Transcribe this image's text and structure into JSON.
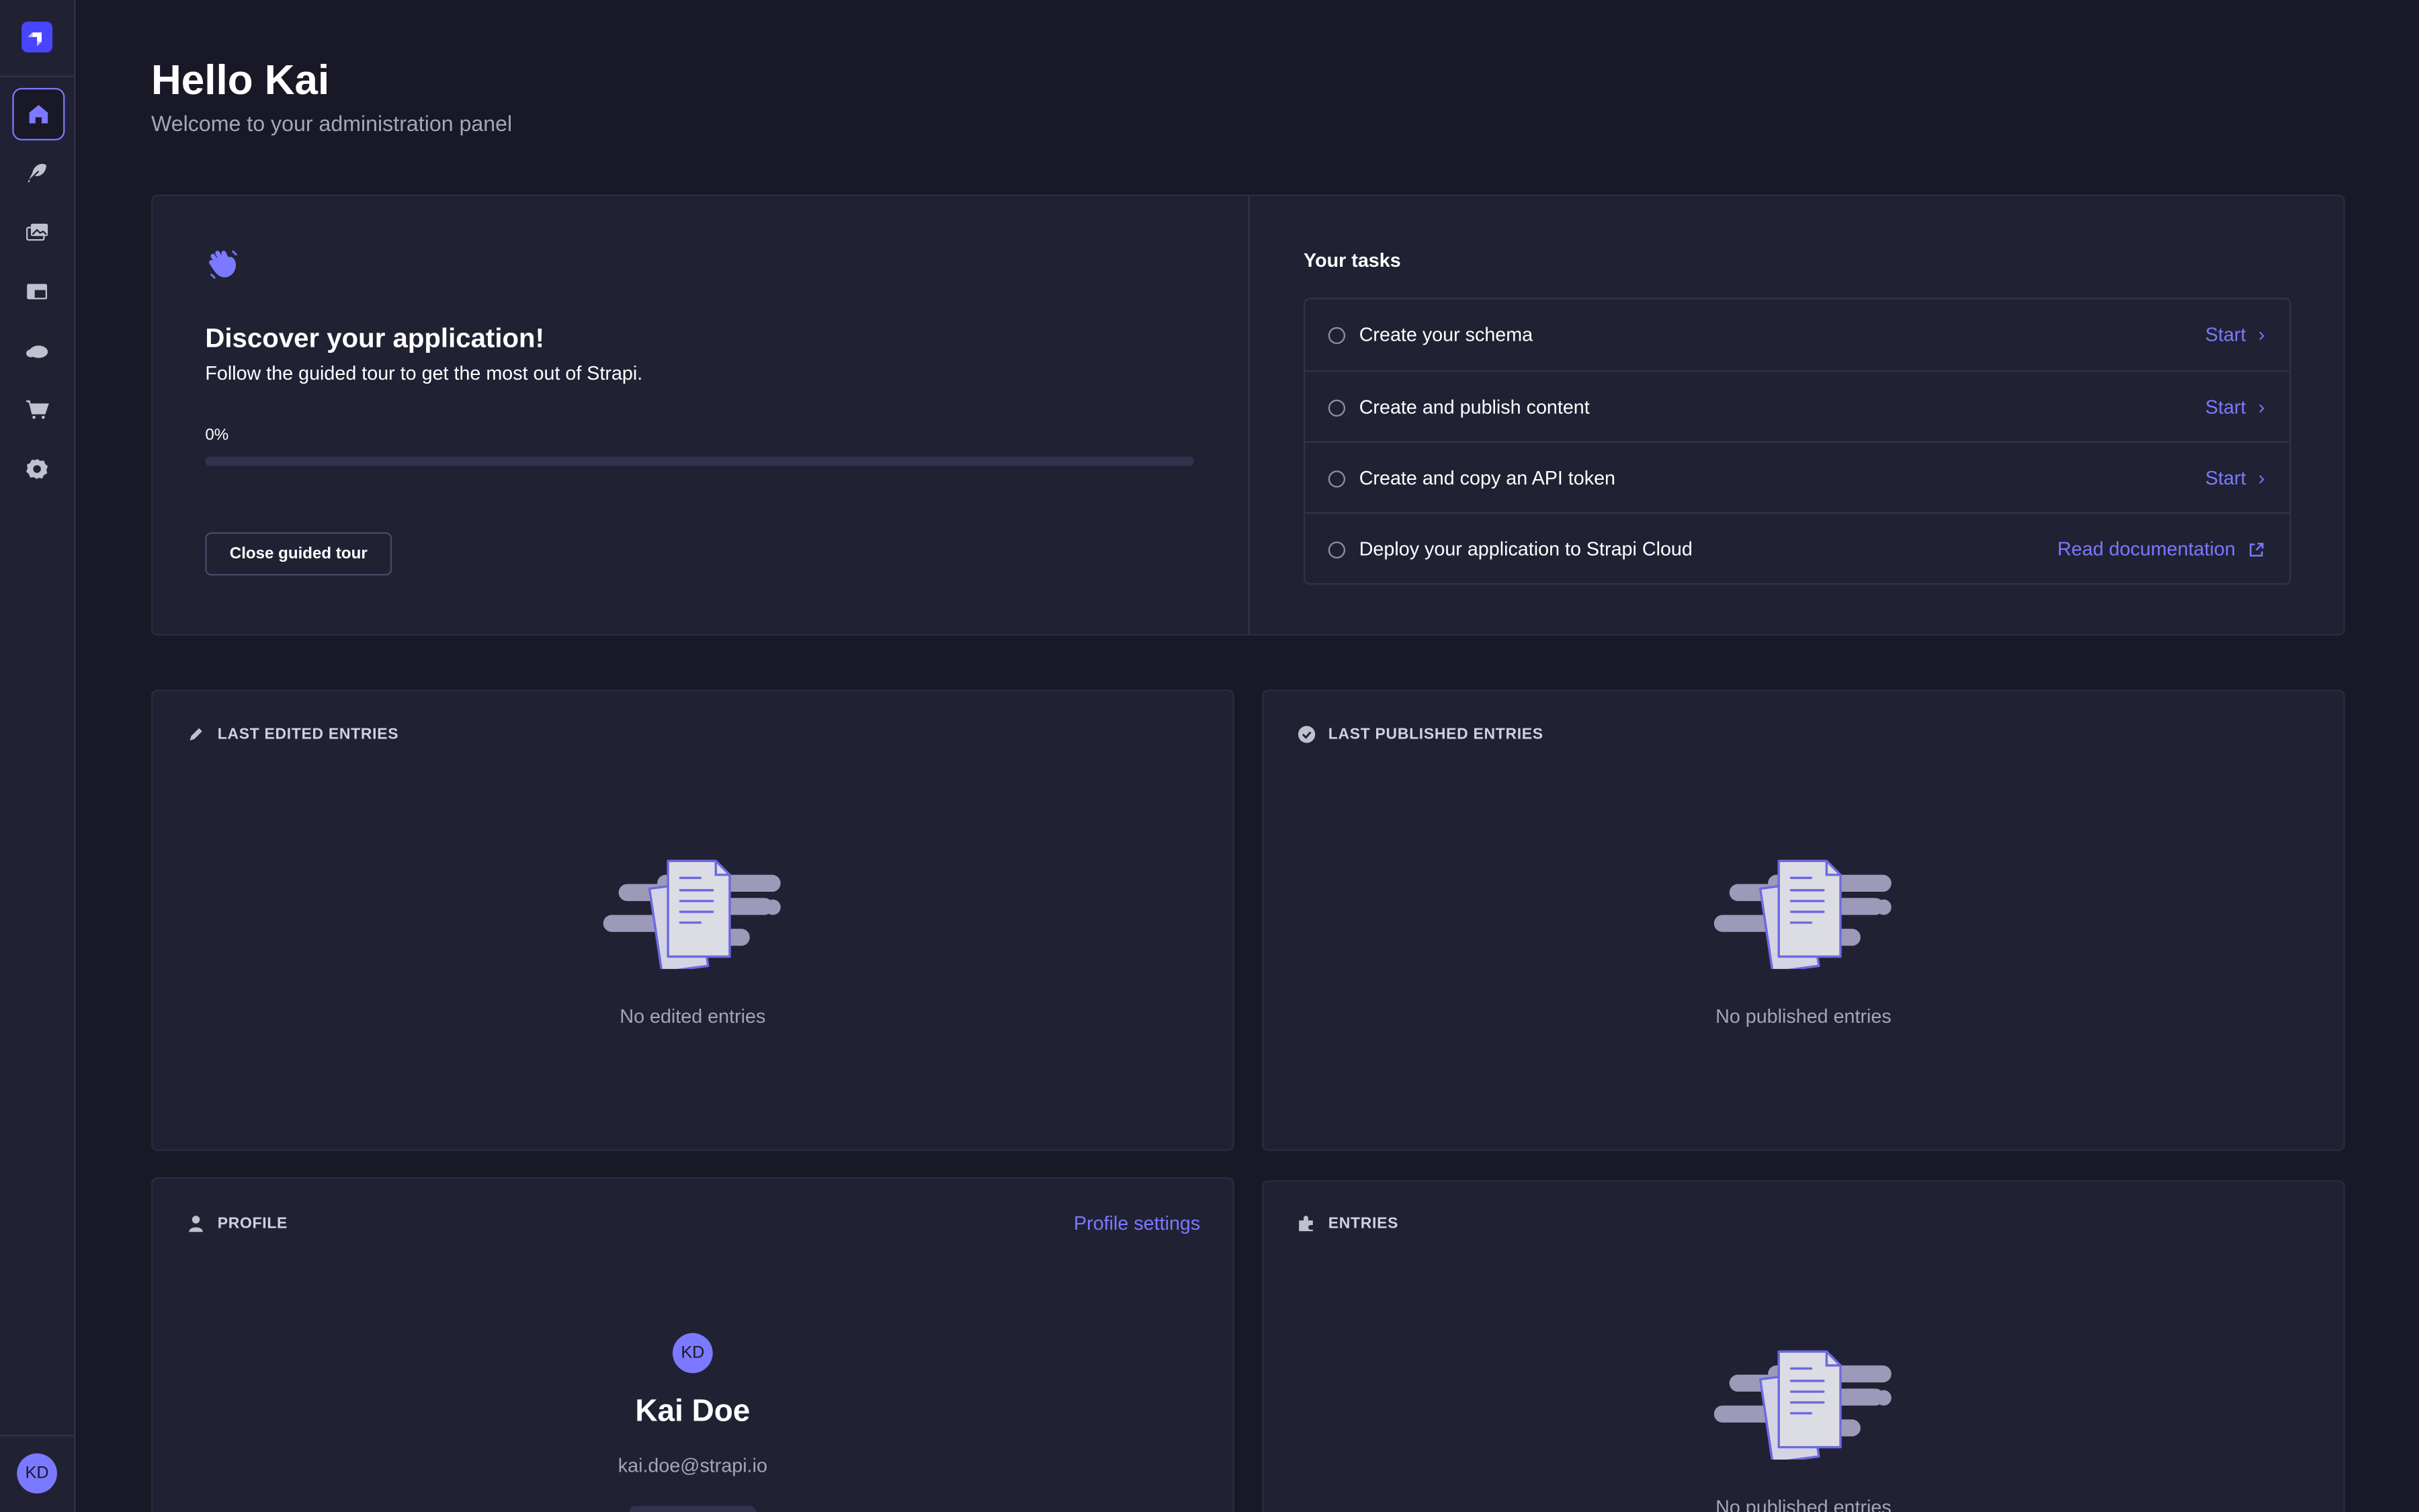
{
  "colors": {
    "primary": "#7b79ff",
    "background": "#181826",
    "panel": "#212134",
    "border": "#32324d",
    "muted": "#a5a5ba"
  },
  "sidebar": {
    "logo": "strapi-logo",
    "items": [
      {
        "icon": "home-icon",
        "active": true
      },
      {
        "icon": "feather-icon"
      },
      {
        "icon": "images-icon"
      },
      {
        "icon": "layout-icon"
      },
      {
        "icon": "cloud-icon"
      },
      {
        "icon": "cart-icon"
      },
      {
        "icon": "gear-icon"
      }
    ],
    "user_initials": "KD"
  },
  "header": {
    "title": "Hello Kai",
    "subtitle": "Welcome to your administration panel"
  },
  "guided_tour": {
    "icon": "wave-icon",
    "title": "Discover your application!",
    "description": "Follow the guided tour to get the most out of Strapi.",
    "progress_label": "0%",
    "progress": 0,
    "close_label": "Close guided tour"
  },
  "tasks": {
    "title": "Your tasks",
    "items": [
      {
        "label": "Create your schema",
        "action": "Start"
      },
      {
        "label": "Create and publish content",
        "action": "Start"
      },
      {
        "label": "Create and copy an API token",
        "action": "Start"
      },
      {
        "label": "Deploy your application to Strapi Cloud",
        "action": "Read documentation"
      }
    ]
  },
  "last_edited": {
    "title": "LAST EDITED ENTRIES",
    "empty": "No edited entries"
  },
  "last_published": {
    "title": "LAST PUBLISHED ENTRIES",
    "empty": "No published entries"
  },
  "profile": {
    "title": "PROFILE",
    "settings_link": "Profile settings",
    "initials": "KD",
    "name": "Kai Doe",
    "email": "kai.doe@strapi.io"
  },
  "entries": {
    "title": "ENTRIES",
    "empty": "No published entries"
  }
}
